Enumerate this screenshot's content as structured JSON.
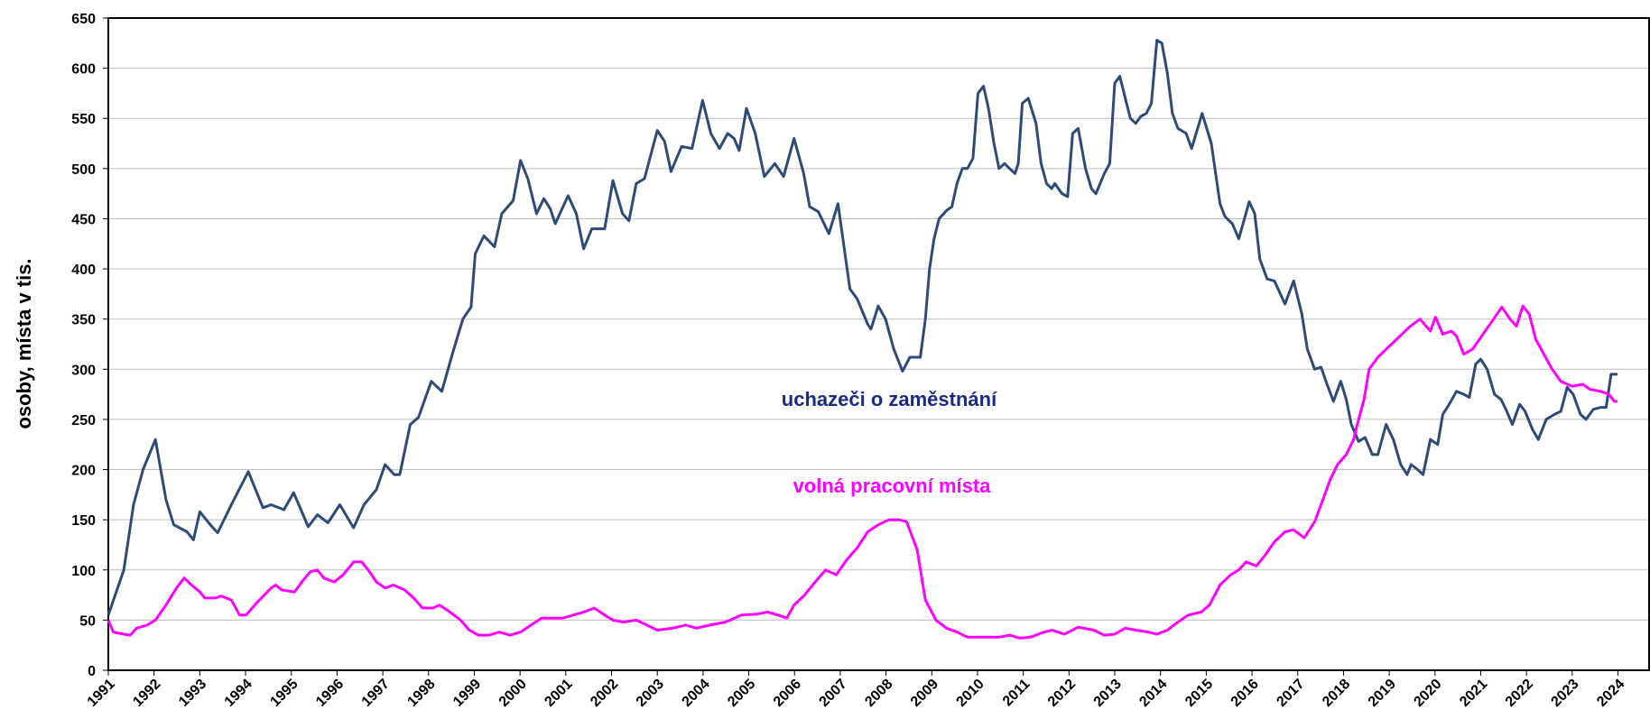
{
  "chart_data": {
    "type": "line",
    "y_label": "osoby, místa v tis.",
    "annotations": [
      "uchazeči o zaměstnání",
      "volná pracovní místa"
    ],
    "xlim": [
      1991,
      2024.68
    ],
    "xticks": [
      1991,
      1992,
      1993,
      1994,
      1995,
      1996,
      1997,
      1998,
      1999,
      2000,
      2001,
      2002,
      2003,
      2004,
      2005,
      2006,
      2007,
      2008,
      2009,
      2010,
      2011,
      2012,
      2013,
      2014,
      2015,
      2016,
      2017,
      2018,
      2019,
      2020,
      2021,
      2022,
      2023,
      2024
    ],
    "ylim": [
      0,
      650
    ],
    "yticks": [
      0,
      50,
      100,
      150,
      200,
      250,
      300,
      350,
      400,
      450,
      500,
      550,
      600,
      650
    ],
    "grid": true,
    "series": [
      {
        "name": "uchazeči o zaměstnání",
        "color": "#2e4a78",
        "x": [
          1991,
          1991.34,
          1991.55,
          1991.76,
          1992.03,
          1992.26,
          1992.43,
          1992.72,
          1992.86,
          1993,
          1993.23,
          1993.39,
          1993.69,
          1994.06,
          1994.38,
          1994.56,
          1994.84,
          1995.05,
          1995.37,
          1995.57,
          1995.8,
          1996.06,
          1996.36,
          1996.59,
          1996.86,
          1997.05,
          1997.25,
          1997.37,
          1997.6,
          1997.78,
          1998.06,
          1998.29,
          1998.52,
          1998.75,
          1998.93,
          1999.02,
          1999.21,
          1999.44,
          1999.6,
          1999.85,
          2000.01,
          2000.17,
          2000.36,
          2000.52,
          2000.66,
          2000.77,
          2001.05,
          2001.23,
          2001.39,
          2001.57,
          2001.85,
          2002.03,
          2002.24,
          2002.38,
          2002.54,
          2002.72,
          2003,
          2003.16,
          2003.3,
          2003.53,
          2003.76,
          2003.99,
          2004.17,
          2004.36,
          2004.54,
          2004.68,
          2004.79,
          2004.95,
          2005.14,
          2005.34,
          2005.57,
          2005.76,
          2005.99,
          2006.2,
          2006.33,
          2006.52,
          2006.75,
          2006.95,
          2007.21,
          2007.37,
          2007.6,
          2007.67,
          2007.83,
          2007.99,
          2008.17,
          2008.36,
          2008.52,
          2008.75,
          2008.86,
          2008.95,
          2009.05,
          2009.16,
          2009.32,
          2009.44,
          2009.55,
          2009.67,
          2009.78,
          2009.9,
          2010.01,
          2010.13,
          2010.24,
          2010.36,
          2010.47,
          2010.59,
          2010.7,
          2010.82,
          2010.89,
          2010.98,
          2011.11,
          2011.28,
          2011.39,
          2011.51,
          2011.62,
          2011.69,
          2011.85,
          2011.97,
          2012.08,
          2012.2,
          2012.36,
          2012.49,
          2012.59,
          2012.68,
          2012.77,
          2012.89,
          2013,
          2013.11,
          2013.23,
          2013.34,
          2013.46,
          2013.57,
          2013.69,
          2013.8,
          2013.92,
          2014.03,
          2014.15,
          2014.26,
          2014.38,
          2014.56,
          2014.68,
          2014.91,
          2015.11,
          2015.3,
          2015.41,
          2015.57,
          2015.71,
          2015.94,
          2016.06,
          2016.17,
          2016.33,
          2016.49,
          2016.72,
          2016.91,
          2017.09,
          2017.21,
          2017.37,
          2017.51,
          2017.64,
          2017.78,
          2017.94,
          2018.06,
          2018.17,
          2018.33,
          2018.47,
          2018.63,
          2018.75,
          2018.93,
          2019.09,
          2019.25,
          2019.39,
          2019.48,
          2019.62,
          2019.74,
          2019.9,
          2020.06,
          2020.17,
          2020.31,
          2020.47,
          2020.63,
          2020.75,
          2020.89,
          2021,
          2021.14,
          2021.3,
          2021.44,
          2021.55,
          2021.69,
          2021.85,
          2021.97,
          2022.13,
          2022.26,
          2022.43,
          2022.61,
          2022.75,
          2022.89,
          2023.02,
          2023.18,
          2023.3,
          2023.46,
          2023.62,
          2023.74,
          2023.85,
          2023.99
        ],
        "values": [
          55,
          100,
          165,
          200,
          230,
          170,
          145,
          138,
          130,
          158,
          145,
          137,
          165,
          198,
          162,
          165,
          160,
          177,
          143,
          155,
          147,
          165,
          142,
          165,
          180,
          205,
          195,
          195,
          245,
          252,
          288,
          278,
          315,
          350,
          362,
          415,
          433,
          422,
          455,
          468,
          508,
          490,
          455,
          470,
          460,
          445,
          473,
          455,
          420,
          440,
          440,
          488,
          455,
          448,
          485,
          490,
          538,
          527,
          497,
          522,
          520,
          568,
          535,
          520,
          535,
          530,
          518,
          560,
          535,
          492,
          505,
          492,
          530,
          495,
          462,
          457,
          435,
          465,
          380,
          370,
          345,
          340,
          363,
          350,
          320,
          298,
          312,
          312,
          350,
          400,
          430,
          450,
          458,
          462,
          485,
          500,
          500,
          510,
          575,
          582,
          560,
          525,
          500,
          505,
          500,
          495,
          505,
          565,
          570,
          545,
          505,
          485,
          480,
          485,
          475,
          472,
          535,
          540,
          500,
          480,
          475,
          485,
          495,
          505,
          585,
          592,
          570,
          550,
          545,
          552,
          555,
          565,
          628,
          625,
          595,
          555,
          540,
          535,
          520,
          555,
          525,
          465,
          452,
          445,
          430,
          467,
          455,
          410,
          390,
          388,
          365,
          388,
          355,
          320,
          300,
          302,
          285,
          268,
          288,
          270,
          245,
          228,
          232,
          215,
          215,
          245,
          230,
          205,
          195,
          205,
          200,
          195,
          230,
          225,
          255,
          265,
          278,
          275,
          272,
          305,
          310,
          300,
          275,
          270,
          260,
          245,
          265,
          258,
          240,
          230,
          250,
          255,
          258,
          282,
          275,
          255,
          250,
          260,
          262,
          262,
          295,
          295
        ]
      },
      {
        "name": "volná pracovní místa",
        "color": "#ff00ff",
        "x": [
          1991,
          1991.11,
          1991.34,
          1991.48,
          1991.62,
          1991.85,
          1992.03,
          1992.26,
          1992.49,
          1992.66,
          1992.82,
          1993,
          1993.11,
          1993.34,
          1993.46,
          1993.69,
          1993.87,
          1994.01,
          1994.26,
          1994.56,
          1994.66,
          1994.79,
          1995.07,
          1995.23,
          1995.41,
          1995.57,
          1995.71,
          1995.94,
          1996.13,
          1996.36,
          1996.54,
          1996.68,
          1996.86,
          1997.05,
          1997.23,
          1997.48,
          1997.67,
          1997.87,
          1998.1,
          1998.24,
          1998.47,
          1998.7,
          1998.89,
          1999.09,
          1999.32,
          1999.55,
          1999.78,
          2000.01,
          2000.24,
          2000.47,
          2000.7,
          2000.93,
          2001.16,
          2001.39,
          2001.62,
          2001.85,
          2002.03,
          2002.26,
          2002.54,
          2002.77,
          2003,
          2003.34,
          2003.62,
          2003.85,
          2004.15,
          2004.49,
          2004.84,
          2005.18,
          2005.41,
          2005.64,
          2005.83,
          2005.99,
          2006.22,
          2006.45,
          2006.68,
          2006.91,
          2007.14,
          2007.37,
          2007.6,
          2007.83,
          2008.06,
          2008.29,
          2008.45,
          2008.68,
          2008.86,
          2009.09,
          2009.32,
          2009.55,
          2009.78,
          2010.13,
          2010.47,
          2010.7,
          2010.93,
          2011.16,
          2011.39,
          2011.62,
          2011.9,
          2012.2,
          2012.54,
          2012.77,
          2013,
          2013.23,
          2013.46,
          2013.74,
          2013.92,
          2014.15,
          2014.38,
          2014.61,
          2014.89,
          2015.07,
          2015.3,
          2015.53,
          2015.71,
          2015.87,
          2016.1,
          2016.29,
          2016.49,
          2016.72,
          2016.91,
          2017.14,
          2017.37,
          2017.55,
          2017.71,
          2017.87,
          2018.06,
          2018.22,
          2018.33,
          2018.45,
          2018.56,
          2018.75,
          2018.98,
          2019.21,
          2019.44,
          2019.67,
          2019.9,
          2020.01,
          2020.17,
          2020.36,
          2020.47,
          2020.63,
          2020.82,
          2021.05,
          2021.28,
          2021.46,
          2021.64,
          2021.78,
          2021.92,
          2022.06,
          2022.2,
          2022.38,
          2022.56,
          2022.75,
          2023,
          2023.23,
          2023.39,
          2023.62,
          2023.8,
          2023.92,
          2023.99
        ],
        "values": [
          50,
          38,
          36,
          35,
          42,
          45,
          50,
          65,
          82,
          92,
          85,
          78,
          72,
          72,
          74,
          70,
          55,
          55,
          68,
          82,
          85,
          80,
          78,
          88,
          98,
          100,
          92,
          88,
          95,
          108,
          108,
          100,
          88,
          82,
          85,
          80,
          72,
          62,
          62,
          65,
          58,
          50,
          40,
          35,
          35,
          38,
          35,
          38,
          45,
          52,
          52,
          52,
          55,
          58,
          62,
          55,
          50,
          48,
          50,
          45,
          40,
          42,
          45,
          42,
          45,
          48,
          55,
          56,
          58,
          55,
          52,
          65,
          75,
          88,
          100,
          95,
          110,
          122,
          138,
          145,
          150,
          150,
          148,
          120,
          70,
          50,
          42,
          38,
          33,
          33,
          33,
          35,
          32,
          33,
          37,
          40,
          36,
          43,
          40,
          35,
          36,
          42,
          40,
          38,
          36,
          40,
          48,
          55,
          58,
          65,
          85,
          95,
          100,
          108,
          104,
          115,
          128,
          138,
          140,
          132,
          148,
          170,
          190,
          205,
          215,
          230,
          250,
          270,
          300,
          312,
          322,
          332,
          342,
          350,
          338,
          352,
          335,
          338,
          333,
          315,
          320,
          335,
          350,
          362,
          350,
          343,
          363,
          355,
          330,
          315,
          300,
          288,
          283,
          285,
          280,
          278,
          275,
          268,
          268
        ]
      }
    ]
  }
}
